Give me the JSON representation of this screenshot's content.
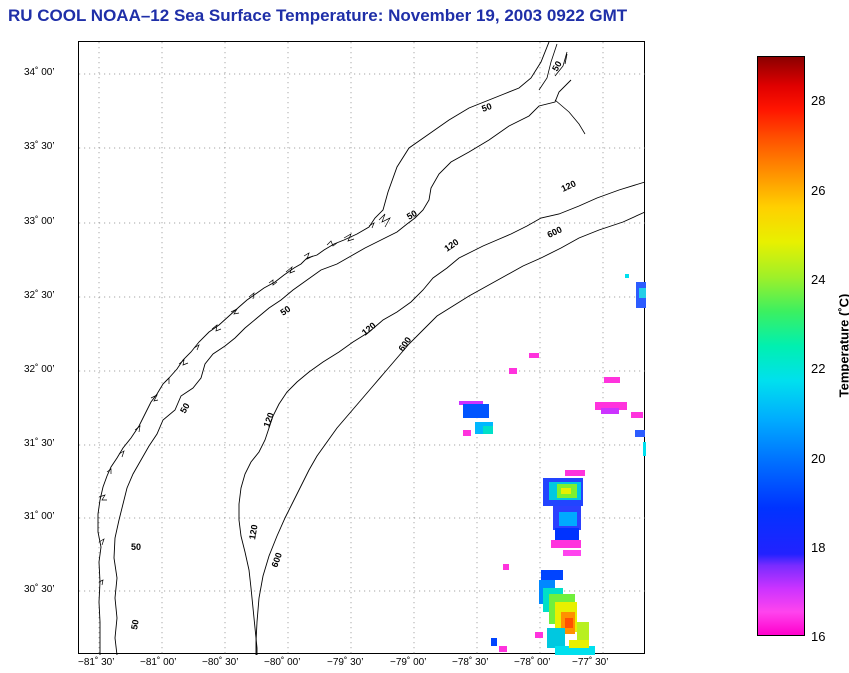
{
  "title": "RU COOL  NOAA–12  Sea Surface Temperature:  November 19, 2003 0922 GMT",
  "y_axis_labels": [
    "34˚ 00’",
    "33˚ 30’",
    "33˚ 00’",
    "32˚ 30’",
    "32˚ 00’",
    "31˚ 30’",
    "31˚ 00’",
    "30˚ 30’"
  ],
  "x_axis_labels": [
    "−81˚ 30’",
    "−81˚ 00’",
    "−80˚ 30’",
    "−80˚ 00’",
    "−79˚ 30’",
    "−79˚ 00’",
    "−78˚ 30’",
    "−78˚ 00’",
    "−77˚ 30’"
  ],
  "contours": {
    "labels": [
      "50",
      "50",
      "50",
      "50",
      "50",
      "50",
      "50",
      "120",
      "120",
      "120",
      "120",
      "120",
      "600",
      "600",
      "600"
    ]
  },
  "colorbar": {
    "title": "Temperature (˚C)",
    "ticks": [
      "28",
      "26",
      "24",
      "22",
      "20",
      "18",
      "16"
    ],
    "min": 16,
    "max": 29
  },
  "colors": {
    "title": "#1f2fa8"
  }
}
